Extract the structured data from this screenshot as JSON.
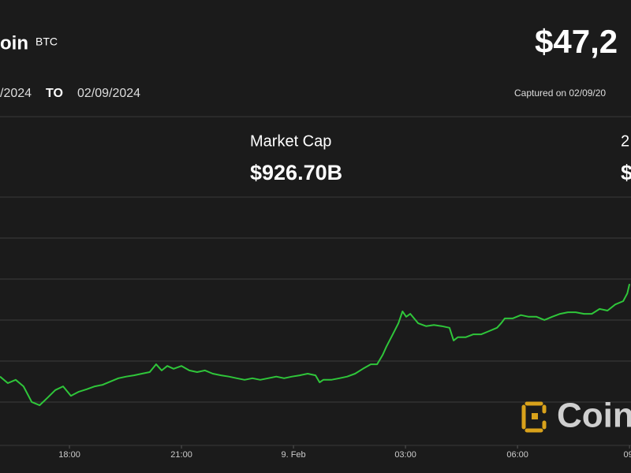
{
  "header": {
    "name": "oin",
    "ticker": "BTC",
    "price": "$47,2",
    "from_date": "/2024",
    "to_label": "TO",
    "to_date": "02/09/2024",
    "captured": "Captured on 02/09/20"
  },
  "stats": [
    {
      "label": "Market Cap",
      "value": "$926.70B"
    },
    {
      "label": "2",
      "value": "$"
    }
  ],
  "watermark": "Coin",
  "chart_data": {
    "type": "line",
    "x": [
      16.14,
      16.35,
      16.56,
      16.77,
      16.99,
      17.2,
      17.41,
      17.62,
      17.83,
      18.04,
      18.25,
      18.46,
      18.68,
      18.89,
      19.1,
      19.31,
      19.52,
      19.73,
      19.94,
      20.15,
      20.32,
      20.47,
      20.62,
      20.79,
      21.0,
      21.21,
      21.42,
      21.63,
      21.84,
      22.06,
      22.27,
      22.48,
      22.69,
      22.9,
      23.11,
      23.32,
      23.54,
      23.75,
      23.96,
      24.17,
      24.38,
      24.59,
      24.7,
      24.8,
      25.01,
      25.23,
      25.44,
      25.65,
      25.86,
      26.07,
      26.24,
      26.39,
      26.49,
      26.66,
      26.81,
      26.92,
      27.02,
      27.13,
      27.34,
      27.55,
      27.76,
      27.97,
      28.18,
      28.29,
      28.4,
      28.61,
      28.82,
      29.03,
      29.24,
      29.45,
      29.56,
      29.66,
      29.87,
      30.09,
      30.3,
      30.51,
      30.72,
      30.93,
      31.14,
      31.35,
      31.56,
      31.78,
      31.99,
      32.2,
      32.41,
      32.62,
      32.83,
      32.94,
      33.0
    ],
    "values": [
      0.62,
      0.46,
      0.54,
      0.38,
      0,
      -0.08,
      0.1,
      0.29,
      0.38,
      0.15,
      0.25,
      0.31,
      0.38,
      0.42,
      0.5,
      0.58,
      0.62,
      0.65,
      0.69,
      0.73,
      0.92,
      0.77,
      0.88,
      0.81,
      0.88,
      0.77,
      0.73,
      0.77,
      0.69,
      0.65,
      0.62,
      0.58,
      0.54,
      0.58,
      0.54,
      0.58,
      0.62,
      0.58,
      0.62,
      0.65,
      0.69,
      0.65,
      0.48,
      0.54,
      0.54,
      0.58,
      0.62,
      0.69,
      0.81,
      0.92,
      0.92,
      1.15,
      1.35,
      1.65,
      1.92,
      2.21,
      2.08,
      2.15,
      1.92,
      1.85,
      1.88,
      1.85,
      1.81,
      1.5,
      1.58,
      1.58,
      1.65,
      1.65,
      1.73,
      1.81,
      1.92,
      2.04,
      2.04,
      2.12,
      2.08,
      2.08,
      2.0,
      2.08,
      2.15,
      2.19,
      2.19,
      2.15,
      2.15,
      2.27,
      2.23,
      2.38,
      2.46,
      2.65,
      2.88
    ],
    "color": "#2fc63a",
    "xlim": [
      16.14,
      33.04
    ],
    "ylim": [
      -1.06,
      5
    ],
    "xticks": [
      {
        "value": 18,
        "label": "18:00"
      },
      {
        "value": 21,
        "label": "21:00"
      },
      {
        "value": 24,
        "label": "9. Feb"
      },
      {
        "value": 27,
        "label": "03:00"
      },
      {
        "value": 30,
        "label": "06:00"
      },
      {
        "value": 33,
        "label": "09:"
      }
    ]
  }
}
